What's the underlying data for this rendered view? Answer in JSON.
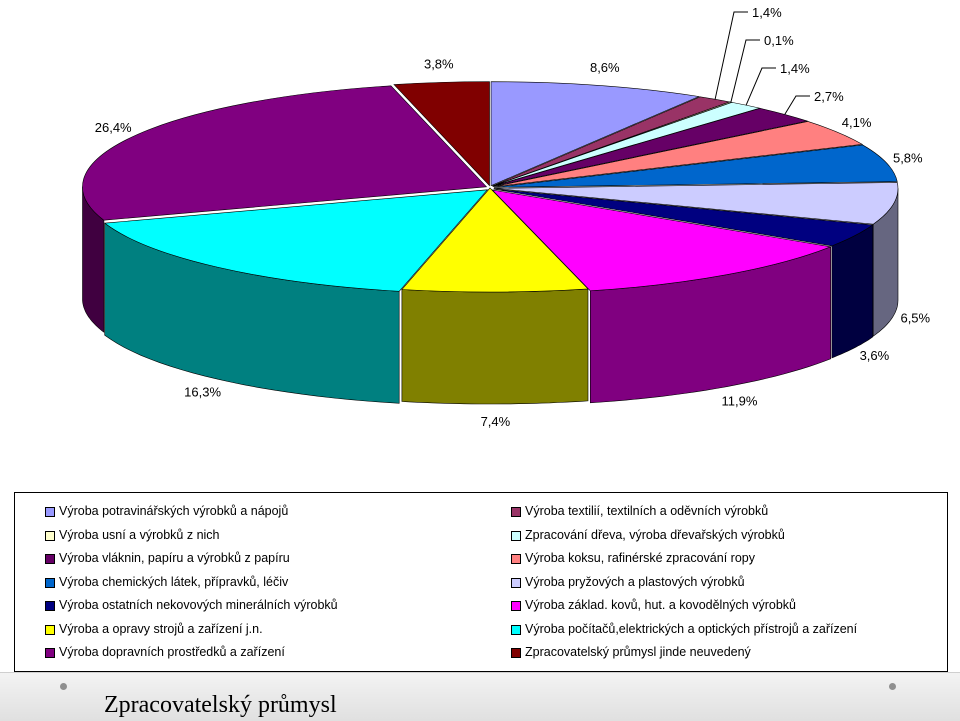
{
  "chart_data": {
    "type": "pie",
    "title": "",
    "categories": [
      "Výroba potravinářských výrobků a nápojů",
      "Výroba textilií, textilních a oděvních výrobků",
      "Výroba usní a výrobků z nich",
      "Zpracování dřeva, výroba dřevařských výrobků",
      "Výroba vláknin, papíru a výrobků z papíru",
      "Výroba koksu, rafinérské zpracování ropy",
      "Výroba chemických látek, přípravků, léčiv",
      "Výroba pryžových a plastových výrobků",
      "Výroba ostatních nekovových minerálních výrobků",
      "Výroba základ. kovů, hut. a kovodělných  výrobků",
      "Výroba a opravy strojů a zařízení j.n.",
      "Výroba počítačů,elektrických a optických přístrojů a zařízení",
      "Výroba dopravních prostředků a zařízení",
      "Zpracovatelský průmysl jinde neuvedený"
    ],
    "values": [
      8.6,
      1.4,
      0.1,
      1.4,
      2.7,
      4.1,
      5.8,
      6.5,
      3.6,
      11.9,
      7.4,
      16.3,
      26.4,
      3.8
    ],
    "data_labels": [
      "8,6%",
      "1,4%",
      "0,1%",
      "1,4%",
      "2,7%",
      "4,1%",
      "5,8%",
      "6,5%",
      "3,6%",
      "11,9%",
      "7,4%",
      "16,3%",
      "26,4%",
      "3,8%"
    ],
    "colors": [
      "#9999ff",
      "#993366",
      "#ffffcc",
      "#ccffff",
      "#660066",
      "#ff8080",
      "#0066cc",
      "#ccccff",
      "#000080",
      "#ff00ff",
      "#ffff00",
      "#00ffff",
      "#800080",
      "#800000"
    ],
    "style": "3d-exploded",
    "legend_position": "bottom"
  },
  "legend": {
    "order": [
      0,
      1,
      2,
      3,
      4,
      5,
      6,
      7,
      8,
      9,
      10,
      11,
      12,
      13
    ]
  },
  "footer": {
    "title": "Zpracovatelský průmysl"
  }
}
